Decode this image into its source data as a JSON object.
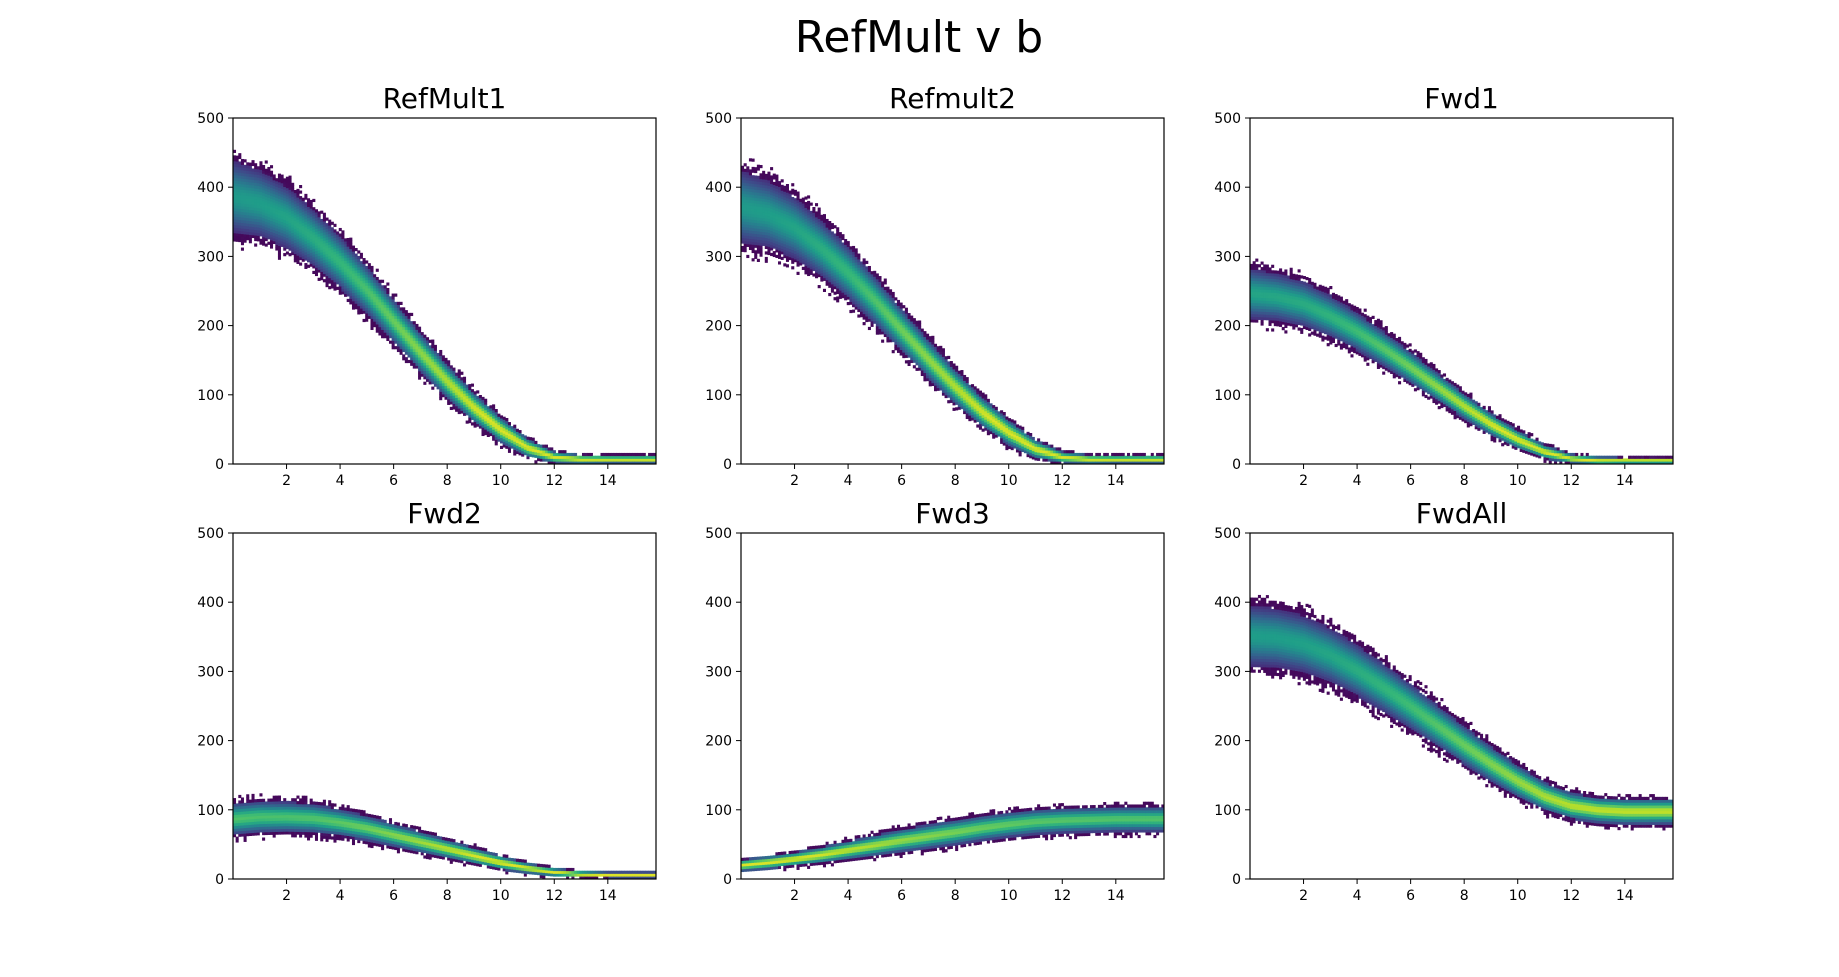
{
  "figure": {
    "title": "RefMult v b"
  },
  "chart_data": [
    {
      "type": "heatmap",
      "title": "RefMult1",
      "xlim": [
        0,
        15.8
      ],
      "ylim": [
        0,
        500
      ],
      "xticks": [
        2,
        4,
        6,
        8,
        10,
        12,
        14
      ],
      "yticks": [
        0,
        100,
        200,
        300,
        400,
        500
      ],
      "band": {
        "x": [
          0,
          1,
          2,
          3,
          4,
          5,
          6,
          7,
          8,
          9,
          10,
          11,
          12,
          13,
          14,
          15.8
        ],
        "center": [
          385,
          375,
          355,
          325,
          290,
          250,
          205,
          160,
          118,
          80,
          48,
          22,
          8,
          5,
          5,
          5
        ],
        "halfwidth": [
          65,
          60,
          55,
          50,
          46,
          42,
          38,
          34,
          30,
          26,
          22,
          16,
          10,
          8,
          7,
          7
        ]
      }
    },
    {
      "type": "heatmap",
      "title": "Refmult2",
      "xlim": [
        0,
        15.8
      ],
      "ylim": [
        0,
        500
      ],
      "xticks": [
        2,
        4,
        6,
        8,
        10,
        12,
        14
      ],
      "yticks": [
        0,
        100,
        200,
        300,
        400,
        500
      ],
      "band": {
        "x": [
          0,
          1,
          2,
          3,
          4,
          5,
          6,
          7,
          8,
          9,
          10,
          11,
          12,
          13,
          14,
          15.8
        ],
        "center": [
          370,
          360,
          340,
          310,
          275,
          235,
          192,
          150,
          110,
          74,
          44,
          20,
          8,
          5,
          5,
          5
        ],
        "halfwidth": [
          65,
          60,
          55,
          50,
          46,
          42,
          38,
          34,
          30,
          26,
          22,
          16,
          10,
          8,
          7,
          7
        ]
      }
    },
    {
      "type": "heatmap",
      "title": "Fwd1",
      "xlim": [
        0,
        15.8
      ],
      "ylim": [
        0,
        500
      ],
      "xticks": [
        2,
        4,
        6,
        8,
        10,
        12,
        14
      ],
      "yticks": [
        0,
        100,
        200,
        300,
        400,
        500
      ],
      "band": {
        "x": [
          0,
          1,
          2,
          3,
          4,
          5,
          6,
          7,
          8,
          9,
          10,
          11,
          12,
          13,
          14,
          15.8
        ],
        "center": [
          245,
          240,
          230,
          212,
          190,
          165,
          138,
          110,
          82,
          56,
          34,
          16,
          6,
          3,
          3,
          3
        ],
        "halfwidth": [
          45,
          42,
          40,
          37,
          34,
          31,
          28,
          25,
          22,
          19,
          16,
          12,
          8,
          7,
          6,
          6
        ]
      }
    },
    {
      "type": "heatmap",
      "title": "Fwd2",
      "xlim": [
        0,
        15.8
      ],
      "ylim": [
        0,
        500
      ],
      "xticks": [
        2,
        4,
        6,
        8,
        10,
        12,
        14
      ],
      "yticks": [
        0,
        100,
        200,
        300,
        400,
        500
      ],
      "band": {
        "x": [
          0,
          1,
          2,
          3,
          4,
          5,
          6,
          7,
          8,
          9,
          10,
          11,
          12,
          13,
          14,
          15.8
        ],
        "center": [
          85,
          88,
          88,
          86,
          80,
          72,
          62,
          52,
          42,
          32,
          22,
          14,
          8,
          5,
          4,
          4
        ],
        "halfwidth": [
          28,
          28,
          27,
          26,
          24,
          22,
          20,
          18,
          16,
          14,
          12,
          9,
          7,
          6,
          5,
          5
        ]
      }
    },
    {
      "type": "heatmap",
      "title": "Fwd3",
      "xlim": [
        0,
        15.8
      ],
      "ylim": [
        0,
        500
      ],
      "xticks": [
        2,
        4,
        6,
        8,
        10,
        12,
        14
      ],
      "yticks": [
        0,
        100,
        200,
        300,
        400,
        500
      ],
      "band": {
        "x": [
          0,
          1,
          2,
          3,
          4,
          5,
          6,
          7,
          8,
          9,
          10,
          11,
          12,
          13,
          14,
          15.8
        ],
        "center": [
          18,
          22,
          27,
          33,
          40,
          47,
          54,
          60,
          66,
          72,
          77,
          81,
          83,
          84,
          85,
          85
        ],
        "halfwidth": [
          10,
          11,
          12,
          14,
          16,
          18,
          20,
          21,
          22,
          22,
          22,
          22,
          22,
          22,
          22,
          22
        ]
      }
    },
    {
      "type": "heatmap",
      "title": "FwdAll",
      "xlim": [
        0,
        15.8
      ],
      "ylim": [
        0,
        500
      ],
      "xticks": [
        2,
        4,
        6,
        8,
        10,
        12,
        14
      ],
      "yticks": [
        0,
        100,
        200,
        300,
        400,
        500
      ],
      "band": {
        "x": [
          0,
          1,
          2,
          3,
          4,
          5,
          6,
          7,
          8,
          9,
          10,
          11,
          12,
          13,
          14,
          15.8
        ],
        "center": [
          350,
          347,
          338,
          322,
          300,
          275,
          248,
          220,
          192,
          165,
          140,
          118,
          104,
          98,
          96,
          96
        ],
        "halfwidth": [
          55,
          53,
          51,
          49,
          46,
          43,
          40,
          37,
          34,
          31,
          28,
          25,
          23,
          22,
          22,
          22
        ]
      }
    }
  ]
}
